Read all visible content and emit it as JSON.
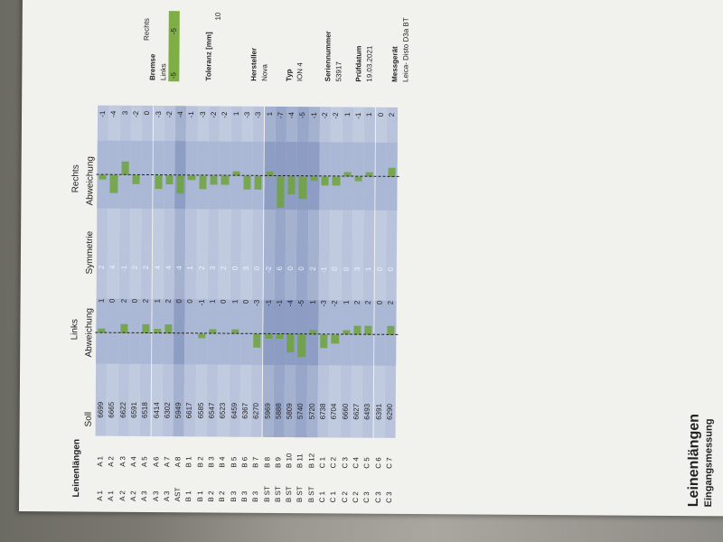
{
  "report": {
    "title": "Leinenlängen",
    "subtitle": "Eingangsmessung"
  },
  "table": {
    "group_links": "Links",
    "group_rechts": "Rechts",
    "headers": [
      "Leinenlängen",
      "Soll",
      "Abweichung",
      "Symmetrie",
      "Abweichung"
    ],
    "rows": [
      {
        "g": "A 1",
        "l": "A 1",
        "soll": "6699",
        "links": "1",
        "sym": "2",
        "rechts": "-1"
      },
      {
        "g": "A 1",
        "l": "A 2",
        "soll": "6665",
        "links": "0",
        "sym": "4",
        "rechts": "-4"
      },
      {
        "g": "A 2",
        "l": "A 3",
        "soll": "6622",
        "links": "2",
        "sym": "-1",
        "rechts": "3"
      },
      {
        "g": "A 2",
        "l": "A 4",
        "soll": "6591",
        "links": "0",
        "sym": "2",
        "rechts": "-2"
      },
      {
        "g": "A 3",
        "l": "A 5",
        "soll": "6518",
        "links": "2",
        "sym": "2",
        "rechts": "0"
      },
      {
        "g": "A 3",
        "l": "A 6",
        "soll": "6414",
        "links": "1",
        "sym": "4",
        "rechts": "-3"
      },
      {
        "g": "A 3",
        "l": "A 7",
        "soll": "6302",
        "links": "2",
        "sym": "4",
        "rechts": "-2"
      },
      {
        "g": "AST",
        "l": "A 8",
        "soll": "5949",
        "links": "0",
        "sym": "4",
        "rechts": "-4"
      },
      {
        "g": "B 1",
        "l": "B 1",
        "soll": "6617",
        "links": "0",
        "sym": "1",
        "rechts": "-1"
      },
      {
        "g": "B 1",
        "l": "B 2",
        "soll": "6585",
        "links": "-1",
        "sym": "2",
        "rechts": "-3"
      },
      {
        "g": "B 2",
        "l": "B 3",
        "soll": "6547",
        "links": "1",
        "sym": "3",
        "rechts": "-2"
      },
      {
        "g": "B 2",
        "l": "B 4",
        "soll": "6523",
        "links": "0",
        "sym": "2",
        "rechts": "-2"
      },
      {
        "g": "B 3",
        "l": "B 5",
        "soll": "6459",
        "links": "1",
        "sym": "0",
        "rechts": "1"
      },
      {
        "g": "B 3",
        "l": "B 6",
        "soll": "6367",
        "links": "0",
        "sym": "3",
        "rechts": "-3"
      },
      {
        "g": "B 3",
        "l": "B 7",
        "soll": "6270",
        "links": "-3",
        "sym": "0",
        "rechts": "-3"
      },
      {
        "g": "B ST",
        "l": "B 8",
        "soll": "5969",
        "links": "-1",
        "sym": "-2",
        "rechts": "1"
      },
      {
        "g": "B ST",
        "l": "B 9",
        "soll": "5888",
        "links": "-1",
        "sym": "6",
        "rechts": "-7"
      },
      {
        "g": "B ST",
        "l": "B 10",
        "soll": "5809",
        "links": "-4",
        "sym": "0",
        "rechts": "-4"
      },
      {
        "g": "B ST",
        "l": "B 11",
        "soll": "5740",
        "links": "-5",
        "sym": "0",
        "rechts": "-5"
      },
      {
        "g": "B ST",
        "l": "B 12",
        "soll": "5720",
        "links": "1",
        "sym": "2",
        "rechts": "-1"
      },
      {
        "g": "C 1",
        "l": "C 1",
        "soll": "6738",
        "links": "-3",
        "sym": "-1",
        "rechts": "-2"
      },
      {
        "g": "C 1",
        "l": "C 2",
        "soll": "6704",
        "links": "-2",
        "sym": "0",
        "rechts": "-2"
      },
      {
        "g": "C 2",
        "l": "C 3",
        "soll": "6660",
        "links": "1",
        "sym": "0",
        "rechts": "1"
      },
      {
        "g": "C 2",
        "l": "C 4",
        "soll": "6627",
        "links": "2",
        "sym": "3",
        "rechts": "-1"
      },
      {
        "g": "C 3",
        "l": "C 5",
        "soll": "6493",
        "links": "2",
        "sym": "1",
        "rechts": "1"
      },
      {
        "g": "C 3",
        "l": "C 6",
        "soll": "6391",
        "links": "0",
        "sym": "0",
        "rechts": "0"
      },
      {
        "g": "C 3",
        "l": "C 7",
        "soll": "6290",
        "links": "2",
        "sym": "0",
        "rechts": "2"
      }
    ]
  },
  "sidebar": {
    "bremse_label": "Bremse",
    "links_label": "Links",
    "rechts_label": "Rechts",
    "links_value": "-5",
    "rechts_value": "-5",
    "toleranz_label": "Toleranz [mm]",
    "toleranz_value": "10",
    "hersteller_label": "Hersteller",
    "hersteller_value": "Nova",
    "typ_label": "Typ",
    "typ_value": "ION 4",
    "serien_label": "Seriennummer",
    "serien_value": "53917",
    "pruef_label": "Prüfdatum",
    "pruef_value": "19.03.2021",
    "mess_label": "Messgerät",
    "mess_value": "Leica- Disto D3a BT"
  },
  "colors": {
    "stripe_light": "#b9c4dc",
    "stripe_dark": "#97a6c9",
    "bar": "#6ea33b",
    "bremse_fill": "#7fae45"
  }
}
